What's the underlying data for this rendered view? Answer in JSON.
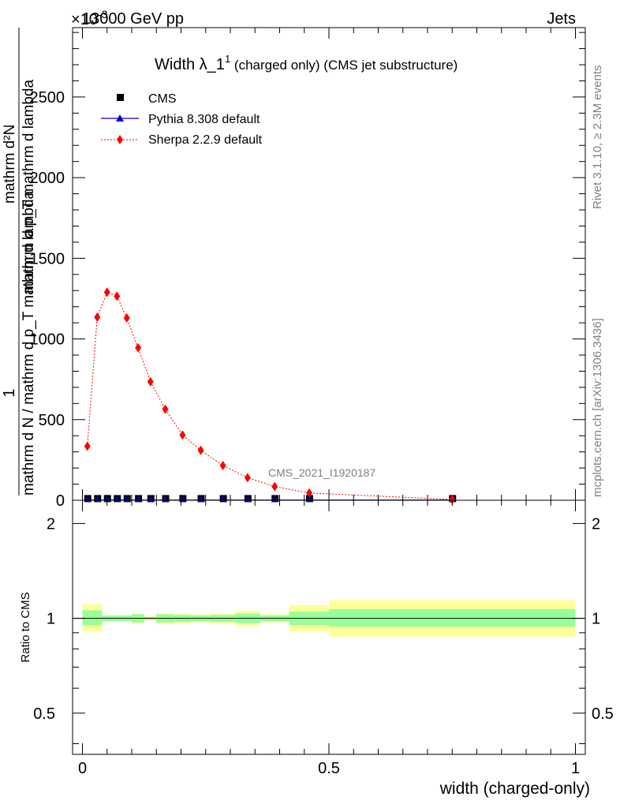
{
  "header": {
    "left": "13000 GeV pp",
    "right": "Jets",
    "exponent_label": "×10",
    "exponent_power": "-3"
  },
  "side_labels": {
    "rivet": "Rivet 3.1.10, ≥ 2.3M events",
    "mcplots": "mcplots.cern.ch [arXiv:1306.3436]"
  },
  "colors": {
    "cms": "#000000",
    "pythia": "#0000cc",
    "sherpa": "#ff0000",
    "band_inner": "#99ff99",
    "band_outer": "#ffff99"
  },
  "chart_data": [
    {
      "type": "line",
      "title": "Width λ_1",
      "title_superscript": "1",
      "subtitle": "(charged only) (CMS jet substructure)",
      "analysis_tag": "CMS_2021_I1920187",
      "ylabel_top": "1",
      "ylabel_bottom": "mathrm d N / mathrm d p_T mathrm d lambda",
      "ylabel_numerator": "mathrm d²N",
      "ylabel_denominator": "mathrm d p_T mathrm d lambda",
      "xlim": [
        -0.02,
        1.02
      ],
      "ylim": [
        0,
        2930
      ],
      "y_ticks": [
        0,
        500,
        1000,
        1500,
        2000,
        2500
      ],
      "y_tick_labels": [
        "0",
        "500",
        "1000",
        "1500",
        "2000",
        "2500"
      ],
      "legend_placement": "top-left",
      "series": [
        {
          "name": "CMS",
          "marker": "square",
          "x": [
            0.01,
            0.03,
            0.05,
            0.07,
            0.09,
            0.113,
            0.138,
            0.168,
            0.203,
            0.24,
            0.285,
            0.335,
            0.39,
            0.46,
            0.75
          ],
          "y": [
            3,
            3,
            3,
            3,
            3,
            3,
            3,
            3,
            3,
            3,
            3,
            3,
            3,
            3,
            3
          ]
        },
        {
          "name": "Pythia 8.308 default",
          "marker": "triangle",
          "x": [
            0.01,
            0.03,
            0.05,
            0.07,
            0.09,
            0.113,
            0.138,
            0.168,
            0.203,
            0.24,
            0.285,
            0.335,
            0.39,
            0.46,
            0.75
          ],
          "y": [
            2,
            2,
            2,
            2,
            2,
            2,
            2,
            2,
            2,
            2,
            2,
            2,
            2,
            2,
            2
          ]
        },
        {
          "name": "Sherpa 2.2.9 default",
          "marker": "diamond",
          "x": [
            0.01,
            0.03,
            0.05,
            0.07,
            0.09,
            0.113,
            0.138,
            0.168,
            0.203,
            0.24,
            0.285,
            0.335,
            0.39,
            0.46,
            0.75
          ],
          "y": [
            335,
            1135,
            1290,
            1265,
            1130,
            945,
            735,
            565,
            405,
            310,
            215,
            140,
            85,
            45,
            5
          ]
        }
      ]
    },
    {
      "type": "area",
      "ylabel": "Ratio to CMS",
      "xlabel": "width (charged-only)",
      "xlim": [
        -0.02,
        1.02
      ],
      "ylim": [
        0.37,
        2.37
      ],
      "y_scale": "log",
      "y_ticks": [
        0.5,
        1,
        2
      ],
      "y_tick_labels": [
        "0.5",
        "1",
        "2"
      ],
      "x_ticks": [
        0,
        0.5,
        1
      ],
      "x_tick_labels": [
        "0",
        "0.5",
        "1"
      ],
      "bins": [
        {
          "lo": 0.0,
          "hi": 0.04,
          "inner": [
            0.95,
            1.06
          ],
          "outer": [
            0.91,
            1.11
          ]
        },
        {
          "lo": 0.04,
          "hi": 0.1,
          "inner": [
            0.98,
            1.02
          ],
          "outer": [
            0.975,
            1.025
          ]
        },
        {
          "lo": 0.1,
          "hi": 0.125,
          "inner": [
            0.97,
            1.03
          ],
          "outer": [
            0.96,
            1.04
          ]
        },
        {
          "lo": 0.125,
          "hi": 0.15,
          "inner": [
            0.99,
            1.01
          ],
          "outer": [
            0.985,
            1.015
          ]
        },
        {
          "lo": 0.15,
          "hi": 0.185,
          "inner": [
            0.97,
            1.03
          ],
          "outer": [
            0.96,
            1.04
          ]
        },
        {
          "lo": 0.185,
          "hi": 0.22,
          "inner": [
            0.975,
            1.025
          ],
          "outer": [
            0.965,
            1.035
          ]
        },
        {
          "lo": 0.22,
          "hi": 0.26,
          "inner": [
            0.98,
            1.02
          ],
          "outer": [
            0.97,
            1.03
          ]
        },
        {
          "lo": 0.26,
          "hi": 0.31,
          "inner": [
            0.975,
            1.025
          ],
          "outer": [
            0.965,
            1.035
          ]
        },
        {
          "lo": 0.31,
          "hi": 0.36,
          "inner": [
            0.965,
            1.035
          ],
          "outer": [
            0.945,
            1.055
          ]
        },
        {
          "lo": 0.36,
          "hi": 0.42,
          "inner": [
            0.98,
            1.02
          ],
          "outer": [
            0.97,
            1.03
          ]
        },
        {
          "lo": 0.42,
          "hi": 0.5,
          "inner": [
            0.95,
            1.05
          ],
          "outer": [
            0.91,
            1.1
          ]
        },
        {
          "lo": 0.5,
          "hi": 1.0,
          "inner": [
            0.94,
            1.07
          ],
          "outer": [
            0.875,
            1.14
          ]
        }
      ],
      "reference_line": 1
    }
  ]
}
